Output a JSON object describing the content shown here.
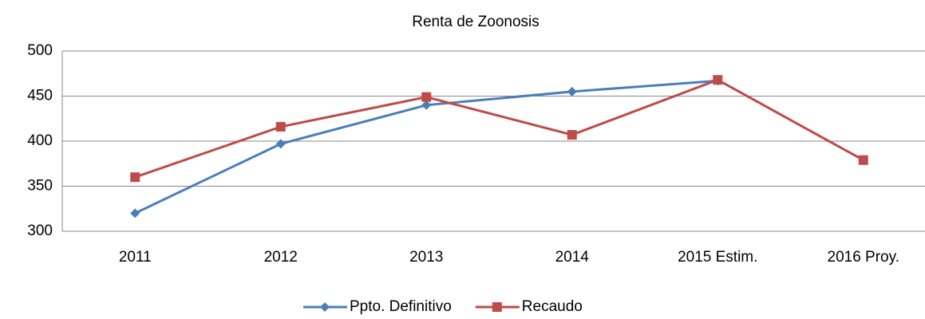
{
  "chart_data": {
    "type": "line",
    "title": "Renta de Zoonosis",
    "categories": [
      "2011",
      "2012",
      "2013",
      "2014",
      "2015 Estim.",
      "2016 Proy."
    ],
    "series": [
      {
        "name": "Ppto. Definitivo",
        "color": "#4a7ebb",
        "marker": "diamond",
        "values": [
          320,
          397,
          440,
          455,
          467,
          null
        ]
      },
      {
        "name": "Recaudo",
        "color": "#be4b48",
        "marker": "square",
        "values": [
          360,
          416,
          449,
          407,
          468,
          379
        ]
      }
    ],
    "ylim": [
      300,
      500
    ],
    "yticks": [
      300,
      350,
      400,
      450,
      500
    ],
    "grid": true,
    "legend": "bottom"
  }
}
